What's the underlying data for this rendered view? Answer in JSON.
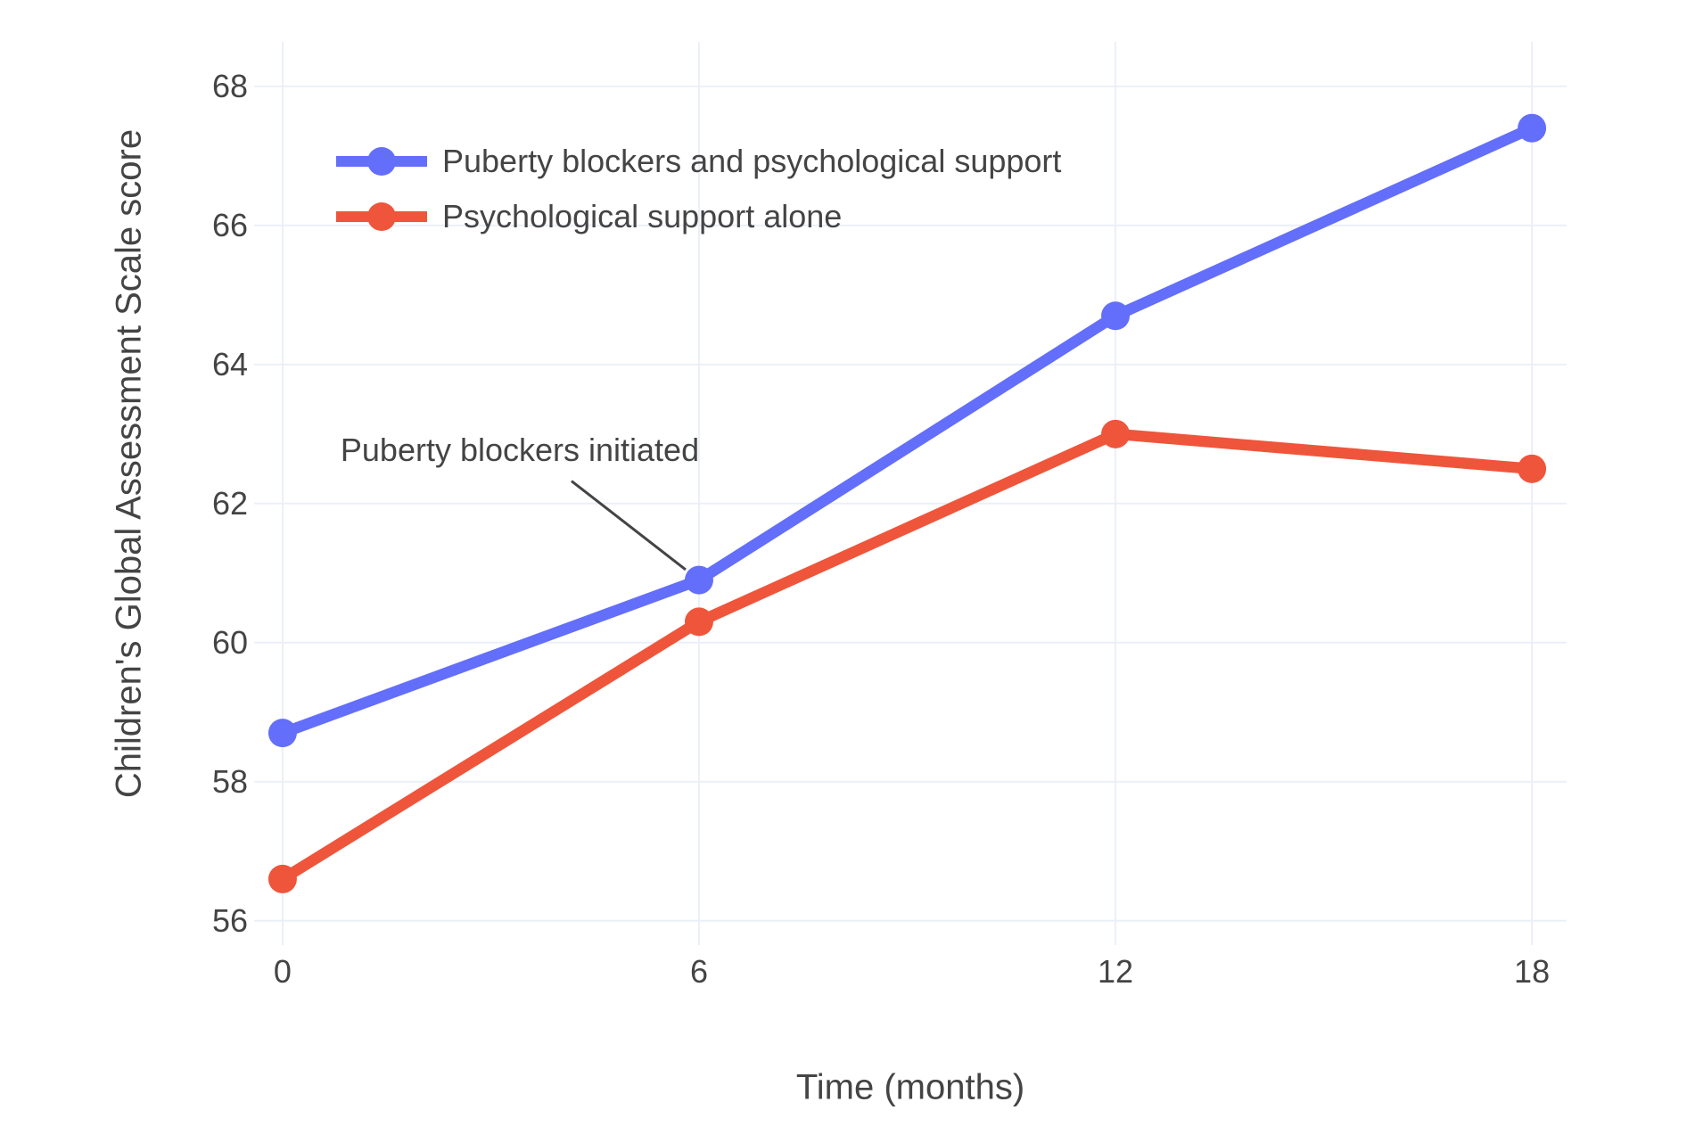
{
  "figure": {
    "background": "#ffffff"
  },
  "chart_data": {
    "type": "line",
    "title": "",
    "xlabel": "Time (months)",
    "ylabel": "Children's Global Assessment Scale score",
    "x": [
      0,
      6,
      12,
      18
    ],
    "xticks": [
      0,
      6,
      12,
      18
    ],
    "yticks": [
      56,
      58,
      60,
      62,
      64,
      66,
      68
    ],
    "xlim": [
      -0.41,
      18.5
    ],
    "ylim": [
      55.65,
      68.64
    ],
    "grid": true,
    "legend_position": "top-left-inside",
    "series": [
      {
        "name": "Puberty blockers and psychological support",
        "color": "#636EFA",
        "values": [
          58.7,
          60.9,
          64.7,
          67.4
        ]
      },
      {
        "name": "Psychological support alone",
        "color": "#EF553B",
        "values": [
          56.6,
          60.3,
          63.0,
          62.5
        ]
      }
    ],
    "annotation": {
      "text": "Puberty blockers initiated",
      "x": 6,
      "y": 60.9,
      "arrow_color": "#444444"
    },
    "colors": {
      "grid": "#EBF0F8",
      "text": "#444444"
    }
  }
}
